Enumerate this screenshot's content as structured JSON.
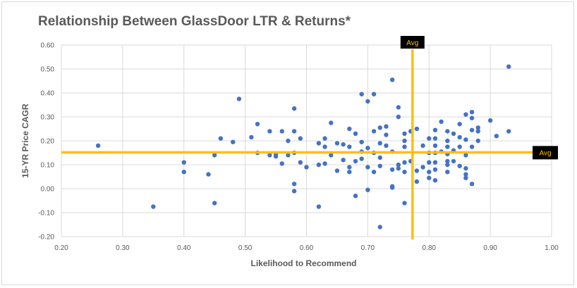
{
  "chart_data": {
    "type": "scatter",
    "title": "Relationship Between GlassDoor LTR & Returns*",
    "xlabel": "Likelihood to Recommend",
    "ylabel": "15-YR Price CAGR",
    "xlim": [
      0.2,
      1.0
    ],
    "ylim": [
      -0.2,
      0.6
    ],
    "x_ticks": [
      "0.20",
      "0.30",
      "0.40",
      "0.50",
      "0.60",
      "0.70",
      "0.80",
      "0.90",
      "1.00"
    ],
    "y_ticks": [
      "0.60",
      "0.50",
      "0.40",
      "0.30",
      "0.20",
      "0.10",
      "0.00",
      "-0.10",
      "-0.20"
    ],
    "grid": true,
    "point_color": "#4472c4",
    "avg_line_color": "#ffc000",
    "avg": {
      "x": 0.773,
      "y": 0.152,
      "label": "Avg"
    },
    "points": [
      [
        0.26,
        0.18
      ],
      [
        0.35,
        -0.075
      ],
      [
        0.4,
        0.11
      ],
      [
        0.4,
        0.07
      ],
      [
        0.44,
        0.06
      ],
      [
        0.45,
        0.14
      ],
      [
        0.45,
        -0.06
      ],
      [
        0.46,
        0.21
      ],
      [
        0.48,
        0.195
      ],
      [
        0.49,
        0.375
      ],
      [
        0.51,
        0.215
      ],
      [
        0.52,
        0.27
      ],
      [
        0.52,
        0.15
      ],
      [
        0.54,
        0.24
      ],
      [
        0.54,
        0.14
      ],
      [
        0.55,
        0.145
      ],
      [
        0.55,
        0.135
      ],
      [
        0.56,
        0.24
      ],
      [
        0.56,
        0.105
      ],
      [
        0.57,
        0.2
      ],
      [
        0.57,
        0.14
      ],
      [
        0.58,
        0.335
      ],
      [
        0.58,
        0.24
      ],
      [
        0.58,
        0.15
      ],
      [
        0.58,
        0.02
      ],
      [
        0.58,
        -0.01
      ],
      [
        0.59,
        0.21
      ],
      [
        0.59,
        0.11
      ],
      [
        0.6,
        0.09
      ],
      [
        0.62,
        0.19
      ],
      [
        0.62,
        0.1
      ],
      [
        0.62,
        -0.075
      ],
      [
        0.63,
        0.21
      ],
      [
        0.63,
        0.175
      ],
      [
        0.63,
        0.105
      ],
      [
        0.64,
        0.275
      ],
      [
        0.64,
        0.14
      ],
      [
        0.65,
        0.19
      ],
      [
        0.65,
        0.075
      ],
      [
        0.66,
        0.185
      ],
      [
        0.66,
        0.12
      ],
      [
        0.67,
        0.25
      ],
      [
        0.67,
        0.175
      ],
      [
        0.67,
        0.09
      ],
      [
        0.67,
        0.07
      ],
      [
        0.68,
        0.23
      ],
      [
        0.68,
        0.115
      ],
      [
        0.68,
        -0.03
      ],
      [
        0.69,
        0.395
      ],
      [
        0.69,
        0.195
      ],
      [
        0.69,
        0.155
      ],
      [
        0.69,
        0.125
      ],
      [
        0.7,
        0.365
      ],
      [
        0.7,
        0.17
      ],
      [
        0.7,
        0.09
      ],
      [
        0.7,
        -0.005
      ],
      [
        0.71,
        0.395
      ],
      [
        0.71,
        0.24
      ],
      [
        0.71,
        0.15
      ],
      [
        0.71,
        0.07
      ],
      [
        0.72,
        0.255
      ],
      [
        0.72,
        0.19
      ],
      [
        0.72,
        0.13
      ],
      [
        0.72,
        0.095
      ],
      [
        0.72,
        -0.16
      ],
      [
        0.73,
        0.26
      ],
      [
        0.73,
        0.225
      ],
      [
        0.73,
        0.18
      ],
      [
        0.74,
        0.455
      ],
      [
        0.74,
        0.155
      ],
      [
        0.74,
        0.08
      ],
      [
        0.74,
        0.01
      ],
      [
        0.74,
        0.005
      ],
      [
        0.75,
        0.34
      ],
      [
        0.75,
        0.3
      ],
      [
        0.75,
        0.1
      ],
      [
        0.75,
        0.085
      ],
      [
        0.76,
        0.23
      ],
      [
        0.76,
        0.2
      ],
      [
        0.76,
        0.175
      ],
      [
        0.76,
        0.11
      ],
      [
        0.76,
        0.07
      ],
      [
        0.76,
        -0.06
      ],
      [
        0.77,
        0.24
      ],
      [
        0.77,
        0.115
      ],
      [
        0.78,
        0.25
      ],
      [
        0.78,
        0.075
      ],
      [
        0.78,
        0.03
      ],
      [
        0.79,
        0.18
      ],
      [
        0.79,
        0.09
      ],
      [
        0.8,
        0.21
      ],
      [
        0.8,
        0.15
      ],
      [
        0.8,
        0.11
      ],
      [
        0.8,
        0.07
      ],
      [
        0.8,
        0.045
      ],
      [
        0.81,
        0.245
      ],
      [
        0.81,
        0.21
      ],
      [
        0.81,
        0.18
      ],
      [
        0.81,
        0.15
      ],
      [
        0.81,
        0.11
      ],
      [
        0.81,
        0.08
      ],
      [
        0.81,
        0.035
      ],
      [
        0.82,
        0.28
      ],
      [
        0.82,
        0.155
      ],
      [
        0.83,
        0.24
      ],
      [
        0.83,
        0.2
      ],
      [
        0.83,
        0.175
      ],
      [
        0.83,
        0.145
      ],
      [
        0.83,
        0.115
      ],
      [
        0.83,
        0.1
      ],
      [
        0.83,
        0.07
      ],
      [
        0.84,
        0.23
      ],
      [
        0.84,
        0.16
      ],
      [
        0.84,
        0.115
      ],
      [
        0.85,
        0.27
      ],
      [
        0.85,
        0.215
      ],
      [
        0.85,
        0.175
      ],
      [
        0.85,
        0.095
      ],
      [
        0.86,
        0.31
      ],
      [
        0.86,
        0.205
      ],
      [
        0.86,
        0.14
      ],
      [
        0.86,
        0.085
      ],
      [
        0.86,
        0.06
      ],
      [
        0.86,
        0.045
      ],
      [
        0.87,
        0.32
      ],
      [
        0.87,
        0.295
      ],
      [
        0.87,
        0.245
      ],
      [
        0.87,
        0.175
      ],
      [
        0.87,
        0.02
      ],
      [
        0.88,
        0.255
      ],
      [
        0.88,
        0.24
      ],
      [
        0.88,
        0.2
      ],
      [
        0.9,
        0.285
      ],
      [
        0.91,
        0.22
      ],
      [
        0.93,
        0.51
      ],
      [
        0.93,
        0.24
      ]
    ]
  }
}
